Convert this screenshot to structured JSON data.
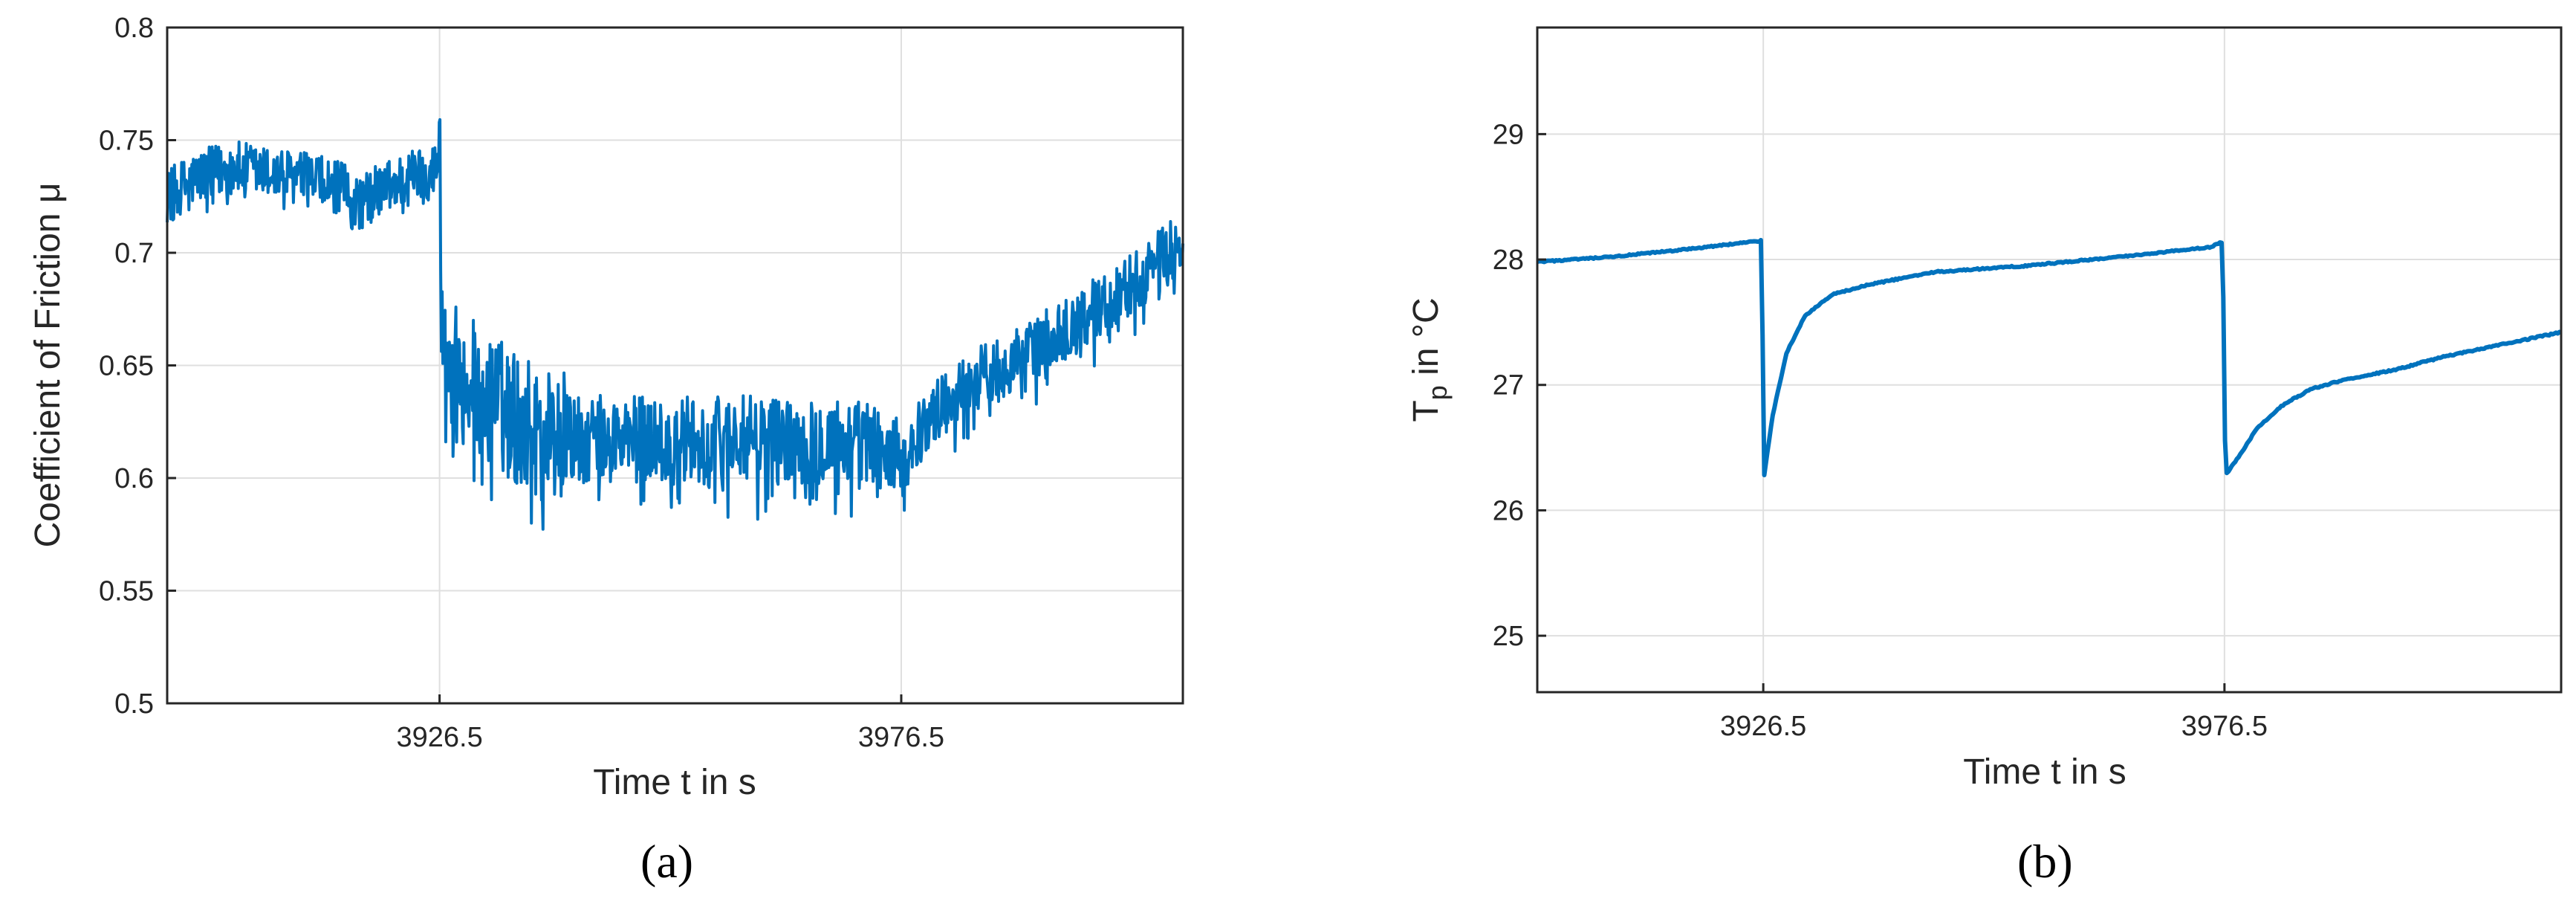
{
  "chart_data": [
    {
      "type": "line",
      "caption": "(a)",
      "xlabel": "Time t in s",
      "ylabel": "Coefficient of Friction μ",
      "xlim": [
        3897,
        4007
      ],
      "ylim": [
        0.5,
        0.8
      ],
      "xticks": [
        3926.5,
        3976.5
      ],
      "xtick_labels": [
        "3926.5",
        "3976.5"
      ],
      "yticks": [
        0.5,
        0.55,
        0.6,
        0.65,
        0.7,
        0.75,
        0.8
      ],
      "ytick_labels": [
        "0.5",
        "0.55",
        "0.6",
        "0.65",
        "0.7",
        "0.75",
        "0.8"
      ],
      "grid": true,
      "noisy": true,
      "color": "#0072bd",
      "series": [
        {
          "x": [
            3897,
            3900,
            3904,
            3908,
            3912,
            3916,
            3918,
            3920,
            3924,
            3926,
            3926.5,
            3926.6,
            3927,
            3929,
            3932,
            3935,
            3938,
            3941,
            3944,
            3948,
            3952,
            3956,
            3960,
            3964,
            3968,
            3972,
            3975,
            3976.5,
            3978,
            3981,
            3985,
            3990,
            3995,
            4000,
            4004,
            4007
          ],
          "y": [
            0.725,
            0.733,
            0.738,
            0.735,
            0.733,
            0.728,
            0.722,
            0.728,
            0.735,
            0.737,
            0.742,
            0.695,
            0.655,
            0.645,
            0.635,
            0.626,
            0.62,
            0.617,
            0.617,
            0.617,
            0.617,
            0.617,
            0.617,
            0.617,
            0.617,
            0.615,
            0.612,
            0.604,
            0.618,
            0.633,
            0.645,
            0.655,
            0.668,
            0.682,
            0.695,
            0.705
          ]
        }
      ]
    },
    {
      "type": "line",
      "caption": "(b)",
      "xlabel": "Time t in s",
      "ylabel": "T",
      "ylabel_sub": "p",
      "ylabel_rest": " in °C",
      "xlim": [
        3902,
        4013
      ],
      "ylim": [
        24.55,
        29.85
      ],
      "xticks": [
        3926.5,
        3976.5
      ],
      "xtick_labels": [
        "3926.5",
        "3976.5"
      ],
      "yticks": [
        25,
        26,
        27,
        28,
        29
      ],
      "ytick_labels": [
        "25",
        "26",
        "27",
        "28",
        "29"
      ],
      "grid": true,
      "noisy": false,
      "color": "#0072bd",
      "series": [
        {
          "x": [
            3902,
            3910,
            3918,
            3926.3,
            3926.6,
            3927.5,
            3929,
            3931,
            3934,
            3938,
            3945,
            3955,
            3965,
            3975,
            3976.3,
            3976.6,
            3978,
            3980,
            3983,
            3986,
            3990,
            3995,
            4000,
            4005,
            4013
          ],
          "y": [
            27.98,
            28.02,
            28.08,
            28.15,
            26.28,
            26.75,
            27.25,
            27.55,
            27.72,
            27.8,
            27.9,
            27.95,
            28.02,
            28.1,
            28.14,
            26.28,
            26.42,
            26.65,
            26.85,
            26.97,
            27.05,
            27.12,
            27.22,
            27.3,
            27.42
          ]
        }
      ]
    }
  ]
}
